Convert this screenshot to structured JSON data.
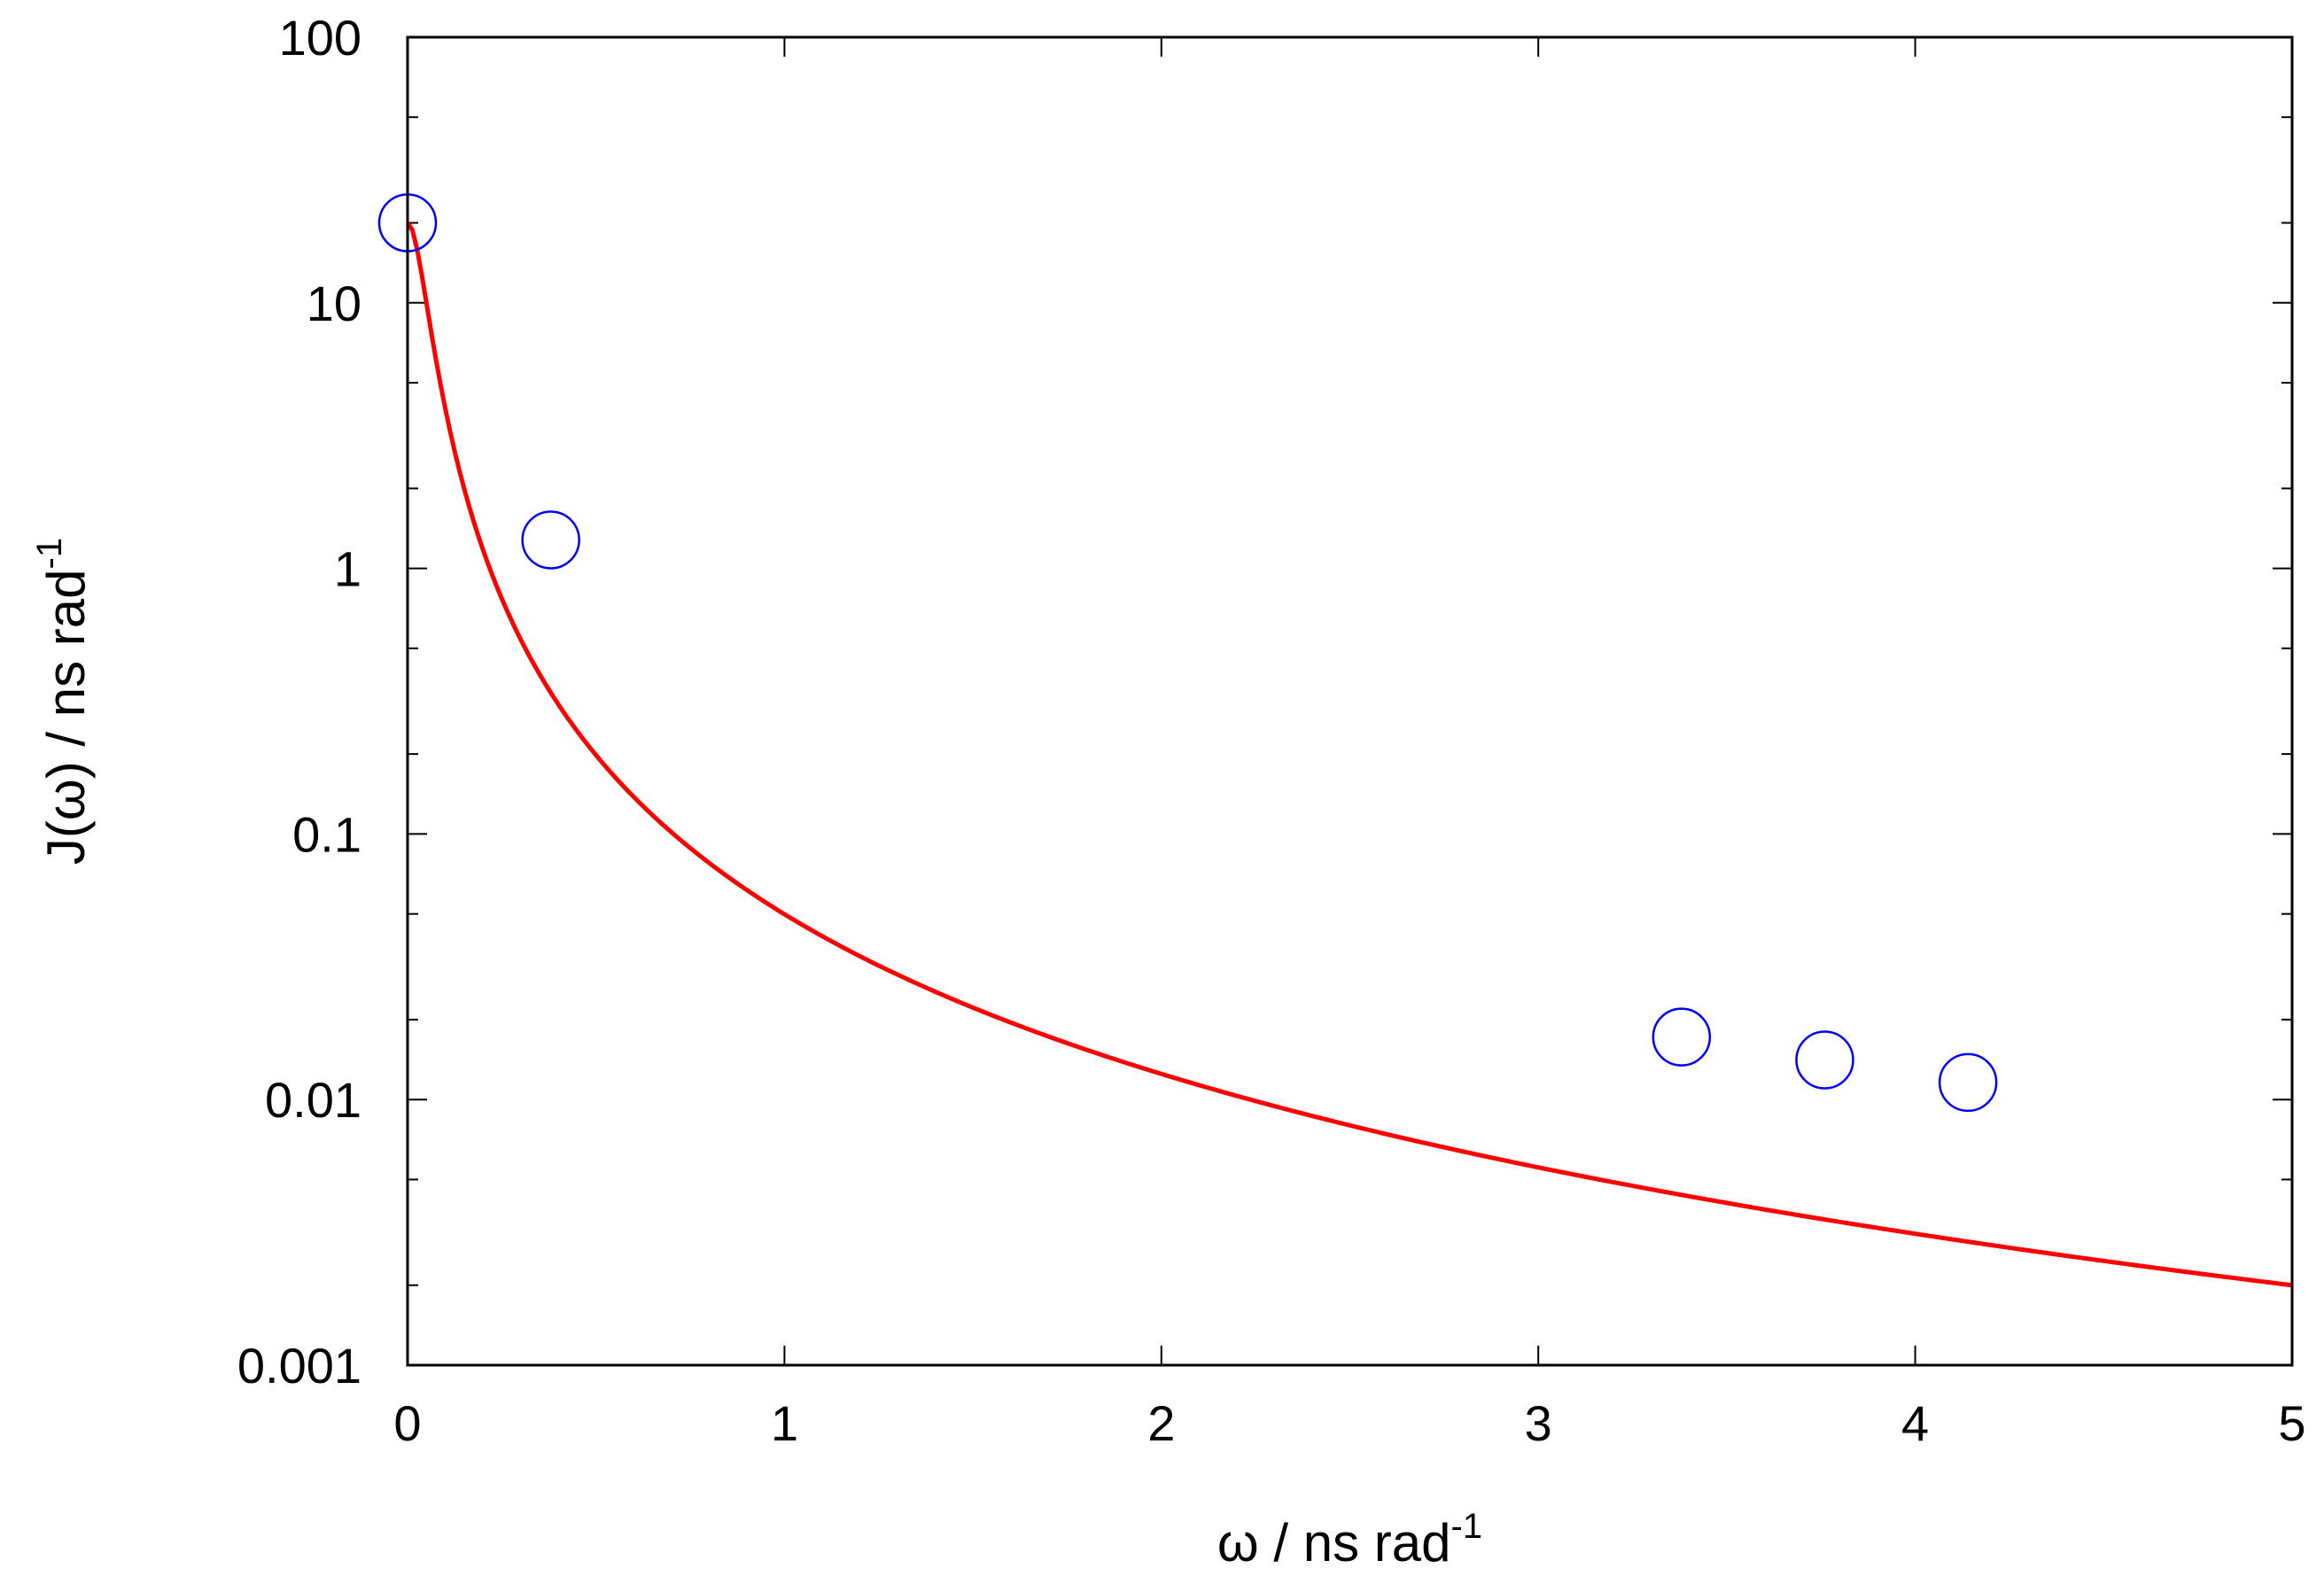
{
  "chart_data": {
    "type": "scatter",
    "title": "",
    "xlabel": "ω / ns rad",
    "xlabel_sup": "-1",
    "ylabel": "J(ω) / ns rad",
    "ylabel_sup": "-1",
    "xlim": [
      0,
      5
    ],
    "ylim": [
      0.001,
      100
    ],
    "yscale": "log",
    "grid": false,
    "x_ticks": [
      0,
      1,
      2,
      3,
      4,
      5
    ],
    "x_tick_labels": [
      "0",
      "1",
      "2",
      "3",
      "4",
      "5"
    ],
    "y_ticks": [
      0.001,
      0.01,
      0.1,
      1,
      10,
      100
    ],
    "y_tick_labels": [
      "0.001",
      "0.01",
      "0.1",
      "1",
      "10",
      "100"
    ],
    "series": [
      {
        "kind": "points",
        "marker": "open-circle",
        "color": "#0000ff",
        "points": [
          {
            "x": 0.0,
            "y": 20.0
          },
          {
            "x": 0.38,
            "y": 1.28
          },
          {
            "x": 3.38,
            "y": 0.0172
          },
          {
            "x": 3.76,
            "y": 0.0141
          },
          {
            "x": 4.14,
            "y": 0.0116
          }
        ]
      },
      {
        "kind": "line",
        "color": "#ff0000",
        "tau": 20.0
      }
    ]
  }
}
